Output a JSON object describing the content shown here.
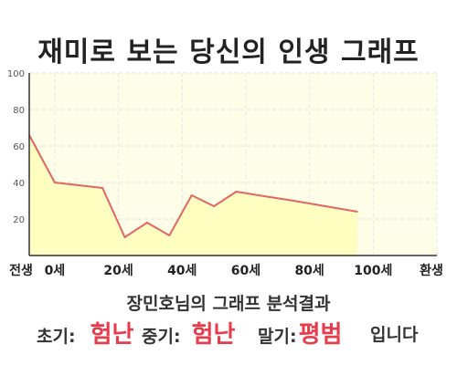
{
  "title": "재미로 보는 당신의 인생 그래프",
  "subtitle": "장민호님의 그래프 분석결과",
  "stages": [
    {
      "label": "초기:",
      "value": "험난"
    },
    {
      "label": "중기:",
      "value": "험난"
    },
    {
      "label": "말기:",
      "value": "평범"
    }
  ],
  "suffix": "입니다",
  "colors": {
    "plot_background": "#fefee8",
    "area_fill": "#fefec0",
    "line": "#e06666",
    "highlight": "#e83b4b",
    "text": "#333333"
  },
  "chart_data": {
    "type": "area",
    "title": "재미로 보는 당신의 인생 그래프",
    "x": [
      -8,
      0,
      15,
      22,
      29,
      36,
      43,
      50,
      57,
      64,
      75,
      85,
      95
    ],
    "x_ticks": [
      {
        "value": -8,
        "label": "전생"
      },
      {
        "value": 0,
        "label": "0세"
      },
      {
        "value": 20,
        "label": "20세"
      },
      {
        "value": 40,
        "label": "40세"
      },
      {
        "value": 60,
        "label": "60세"
      },
      {
        "value": 80,
        "label": "80세"
      },
      {
        "value": 100,
        "label": "100세"
      },
      {
        "value": 120,
        "label": "환생"
      }
    ],
    "xlim": [
      -8,
      120
    ],
    "series": [
      {
        "values": [
          66,
          40,
          37,
          10,
          18,
          11,
          33,
          27,
          35,
          33,
          30,
          27,
          24
        ]
      }
    ],
    "y_ticks": [
      20,
      40,
      60,
      80,
      100
    ],
    "ylim": [
      0,
      100
    ],
    "xlabel": "",
    "ylabel": "",
    "grid": true,
    "grid_style": "dashed"
  }
}
